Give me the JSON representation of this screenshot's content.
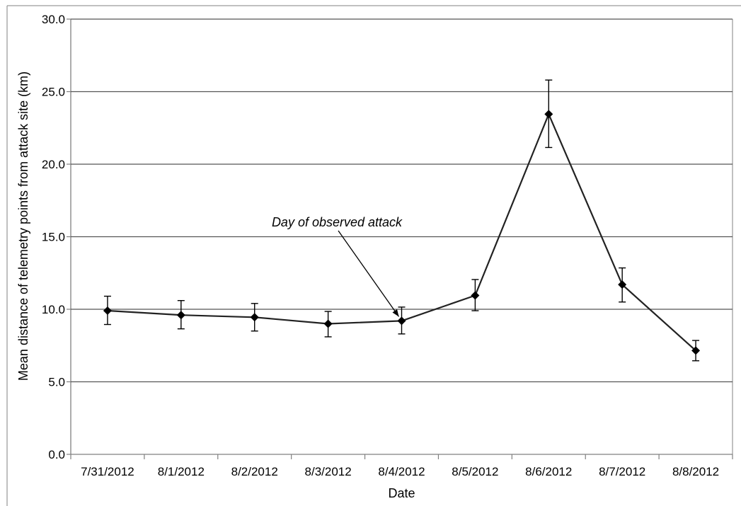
{
  "chart_data": {
    "type": "line",
    "title": "",
    "xlabel": "Date",
    "ylabel": "Mean distance of telemetry points from attack site (km)",
    "ylim": [
      0,
      30
    ],
    "yticks": [
      "0.0",
      "5.0",
      "10.0",
      "15.0",
      "20.0",
      "25.0",
      "30.0"
    ],
    "grid": "horizontal",
    "legend": "none",
    "categories": [
      "7/31/2012",
      "8/1/2012",
      "8/2/2012",
      "8/3/2012",
      "8/4/2012",
      "8/5/2012",
      "8/6/2012",
      "8/7/2012",
      "8/8/2012"
    ],
    "series": [
      {
        "values": [
          9.9,
          9.6,
          9.45,
          9.0,
          9.2,
          10.95,
          23.45,
          11.7,
          7.15
        ],
        "error_low": [
          8.95,
          8.65,
          8.5,
          8.1,
          8.3,
          9.9,
          21.15,
          10.5,
          6.45
        ],
        "error_high": [
          10.9,
          10.6,
          10.4,
          9.85,
          10.15,
          12.05,
          25.8,
          12.85,
          7.85
        ],
        "color": "#222222",
        "marker": "diamond"
      }
    ],
    "annotations": [
      {
        "text": "Day of observed attack",
        "category": "8/4/2012"
      }
    ]
  }
}
